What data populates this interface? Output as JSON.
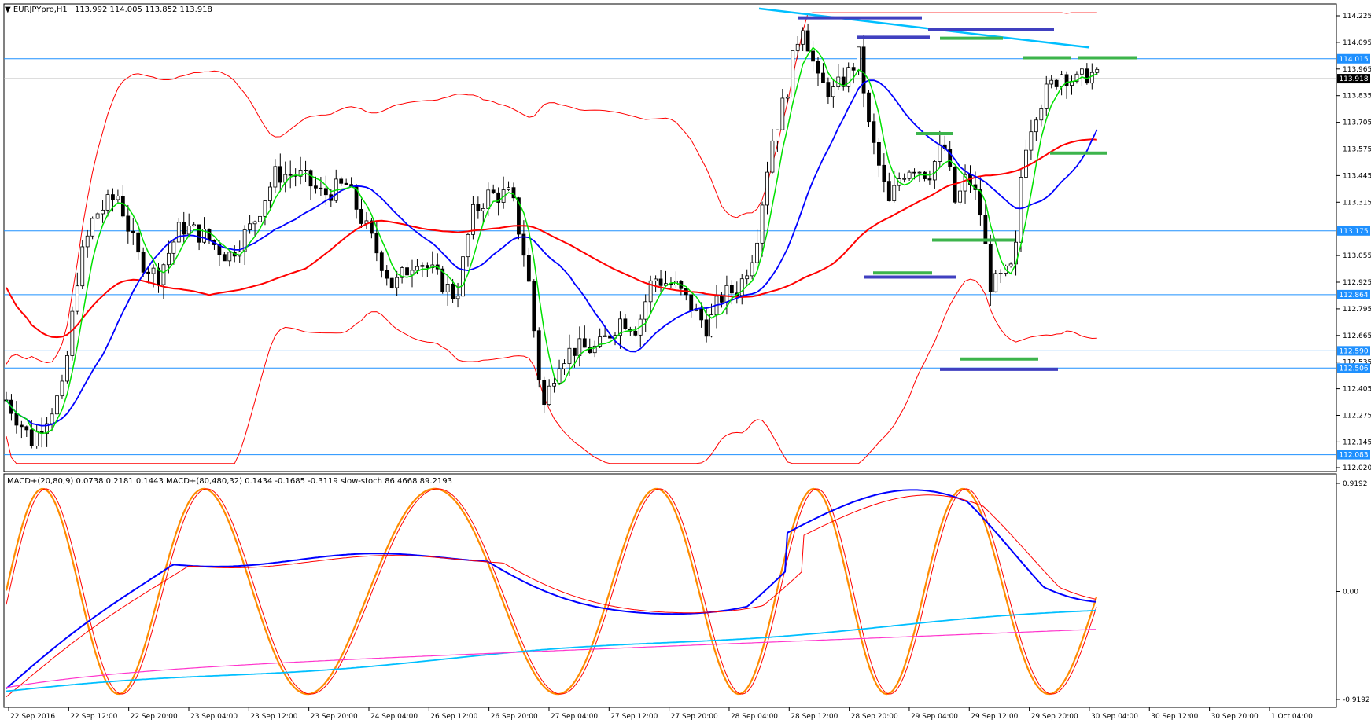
{
  "main_header": {
    "menu_marker": "▼",
    "symbol": "EURJPYpro,H1",
    "ohlc": "113.992 114.005 113.852 113.918"
  },
  "indicator_header": {
    "text": "MACD+(20,80,9) 0.0738 0.2181 0.1443  MACD+(80,480,32) 0.1434 -0.1685 -0.3119  slow-stoch 86.4668 89.2193"
  },
  "price_axis_labels": [
    "114.225",
    "114.095",
    "113.965",
    "113.835",
    "113.705",
    "113.575",
    "113.445",
    "113.315",
    "113.055",
    "112.925",
    "112.795",
    "112.665",
    "112.535",
    "112.405",
    "112.275",
    "112.145",
    "112.020"
  ],
  "price_tags": [
    {
      "value": "114.015",
      "kind": "level"
    },
    {
      "value": "113.918",
      "kind": "current"
    },
    {
      "value": "113.175",
      "kind": "level"
    },
    {
      "value": "112.864",
      "kind": "level"
    },
    {
      "value": "112.590",
      "kind": "level"
    },
    {
      "value": "112.506",
      "kind": "level"
    },
    {
      "value": "112.083",
      "kind": "level"
    }
  ],
  "indicator_axis_labels": [
    "0.9192",
    "0.00",
    "-0.9192"
  ],
  "time_labels": [
    "22 Sep 2016",
    "22 Sep 12:00",
    "22 Sep 20:00",
    "23 Sep 04:00",
    "23 Sep 12:00",
    "23 Sep 20:00",
    "24 Sep 04:00",
    "26 Sep 12:00",
    "26 Sep 20:00",
    "27 Sep 04:00",
    "27 Sep 12:00",
    "27 Sep 20:00",
    "28 Sep 04:00",
    "28 Sep 12:00",
    "28 Sep 20:00",
    "29 Sep 04:00",
    "29 Sep 12:00",
    "29 Sep 20:00",
    "30 Sep 04:00",
    "30 Sep 12:00",
    "30 Sep 20:00",
    "1 Oct 04:00"
  ],
  "colors": {
    "candle_up": "#ffffff",
    "candle_down": "#000000",
    "horizontal_levels": "#1e90ff",
    "bollinger": "#ff0000",
    "ma_fast": "#00e000",
    "ma_mid": "#0000ff",
    "ma_slow": "#ff0000",
    "trendline": "#00bfff",
    "support_marks": "#3cb44b",
    "resistance_marks": "#4040c0",
    "macd_fast": "#0000ff",
    "macd_fast_signal": "#ff0000",
    "macd_slow": "#00bfff",
    "macd_slow_signal": "#ff33cc",
    "stoch_main": "#ff8c00",
    "stoch_signal": "#ff0000",
    "tag_level_bg": "#1e90ff",
    "tag_current_bg": "#000000"
  }
}
